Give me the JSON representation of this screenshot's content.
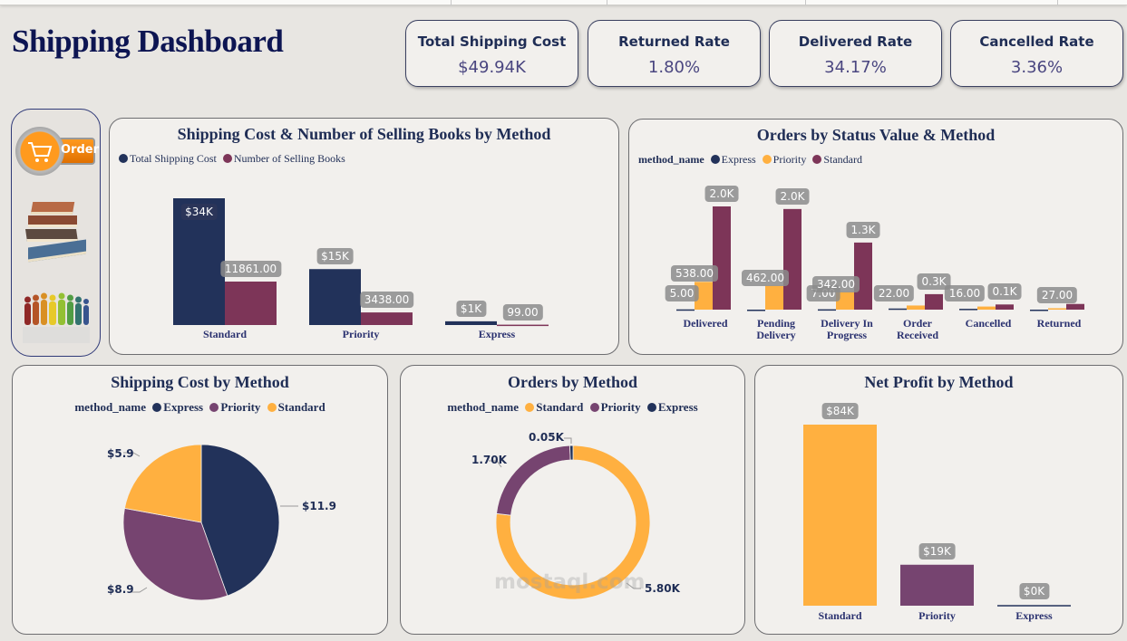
{
  "header": {
    "title": "Shipping Dashboard"
  },
  "kpis": [
    {
      "label": "Total Shipping Cost",
      "value": "$49.94K"
    },
    {
      "label": "Returned Rate",
      "value": "1.80%"
    },
    {
      "label": "Delivered Rate",
      "value": "34.17%"
    },
    {
      "label": "Cancelled Rate",
      "value": "3.36%"
    }
  ],
  "sidebar": {
    "items": [
      {
        "icon": "order-cart-icon",
        "label": "Order"
      },
      {
        "icon": "books-icon"
      },
      {
        "icon": "people-icon"
      }
    ]
  },
  "colors": {
    "express": "#22325a",
    "priority": "#ffb040",
    "standard": "#7d3558",
    "priority_alt": "#764470",
    "count_series": "#7d3558"
  },
  "watermark": "mostaql.com",
  "chart_data": [
    {
      "id": "cost_books",
      "type": "bar",
      "title": "Shipping Cost & Number of Selling Books by Method",
      "categories": [
        "Standard",
        "Priority",
        "Express"
      ],
      "legend": [
        "Total Shipping Cost",
        "Number of Selling Books"
      ],
      "series": [
        {
          "name": "Total Shipping Cost",
          "values": [
            34000,
            15000,
            1000
          ],
          "labels": [
            "$34K",
            "$15K",
            "$1K"
          ]
        },
        {
          "name": "Number of Selling Books",
          "values": [
            11861,
            3438,
            99
          ],
          "labels": [
            "11861.00",
            "3438.00",
            "99.00"
          ]
        }
      ]
    },
    {
      "id": "status_method",
      "type": "bar",
      "title": "Orders by Status Value & Method",
      "legend_title": "method_name",
      "legend": [
        "Express",
        "Priority",
        "Standard"
      ],
      "categories": [
        "Delivered",
        "Pending Delivery",
        "Delivery In Progress",
        "Order Received",
        "Cancelled",
        "Returned"
      ],
      "series": [
        {
          "name": "Express",
          "values": [
            5,
            0,
            7,
            22,
            16,
            0
          ],
          "labels": [
            "5.00",
            "",
            "7.00",
            "22.00",
            "16.00",
            ""
          ]
        },
        {
          "name": "Priority",
          "values": [
            538,
            462,
            342,
            80,
            60,
            27
          ],
          "labels": [
            "538.00",
            "462.00",
            "342.00",
            "",
            "",
            "27.00"
          ]
        },
        {
          "name": "Standard",
          "values": [
            2000,
            1950,
            1300,
            300,
            100,
            110
          ],
          "labels": [
            "2.0K",
            "2.0K",
            "1.3K",
            "0.3K",
            "0.1K",
            ""
          ]
        }
      ]
    },
    {
      "id": "cost_pie",
      "type": "pie",
      "title": "Shipping Cost by Method",
      "legend_title": "method_name",
      "legend": [
        "Express",
        "Priority",
        "Standard"
      ],
      "slices": [
        {
          "name": "Express",
          "value": 11.9,
          "label": "$11.9"
        },
        {
          "name": "Priority",
          "value": 8.9,
          "label": "$8.9"
        },
        {
          "name": "Standard",
          "value": 5.9,
          "label": "$5.9"
        }
      ]
    },
    {
      "id": "orders_donut",
      "type": "pie",
      "title": "Orders by Method",
      "legend_title": "method_name",
      "legend": [
        "Standard",
        "Priority",
        "Express"
      ],
      "slices": [
        {
          "name": "Standard",
          "value": 5800,
          "label": "5.80K"
        },
        {
          "name": "Priority",
          "value": 1700,
          "label": "1.70K"
        },
        {
          "name": "Express",
          "value": 50,
          "label": "0.05K"
        }
      ]
    },
    {
      "id": "net_profit",
      "type": "bar",
      "title": "Net Profit by Method",
      "categories": [
        "Standard",
        "Priority",
        "Express"
      ],
      "values": [
        84000,
        19000,
        300
      ],
      "labels": [
        "$84K",
        "$19K",
        "$0K"
      ]
    }
  ]
}
